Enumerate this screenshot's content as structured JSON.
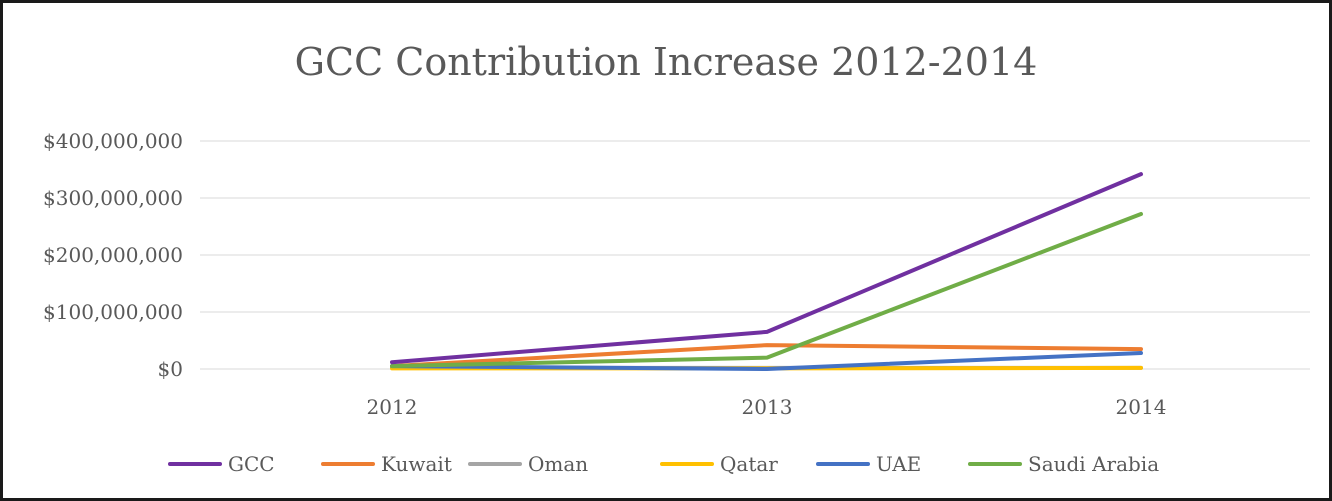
{
  "chart_data": {
    "type": "line",
    "title": "GCC Contribution Increase 2012-2014",
    "xlabel": "",
    "ylabel": "",
    "categories": [
      "2012",
      "2013",
      "2014"
    ],
    "ylim": [
      0,
      400000000
    ],
    "yticks": [
      0,
      100000000,
      200000000,
      300000000,
      400000000
    ],
    "ytick_labels": [
      "$0",
      "$100,000,000",
      "$200,000,000",
      "$300,000,000",
      "$400,000,000"
    ],
    "grid": true,
    "legend_position": "bottom",
    "series": [
      {
        "name": "GCC",
        "color": "#7030a0",
        "values": [
          12000000,
          65000000,
          342000000
        ]
      },
      {
        "name": "Kuwait",
        "color": "#ed7d31",
        "values": [
          5000000,
          42000000,
          35000000
        ]
      },
      {
        "name": "Oman",
        "color": "#a5a5a5",
        "values": [
          2000000,
          2000000,
          2000000
        ]
      },
      {
        "name": "Qatar",
        "color": "#ffc000",
        "values": [
          1000000,
          1000000,
          2000000
        ]
      },
      {
        "name": "UAE",
        "color": "#4472c4",
        "values": [
          5000000,
          0,
          28000000
        ]
      },
      {
        "name": "Saudi Arabia",
        "color": "#70ad47",
        "values": [
          5000000,
          20000000,
          272000000
        ]
      }
    ]
  }
}
